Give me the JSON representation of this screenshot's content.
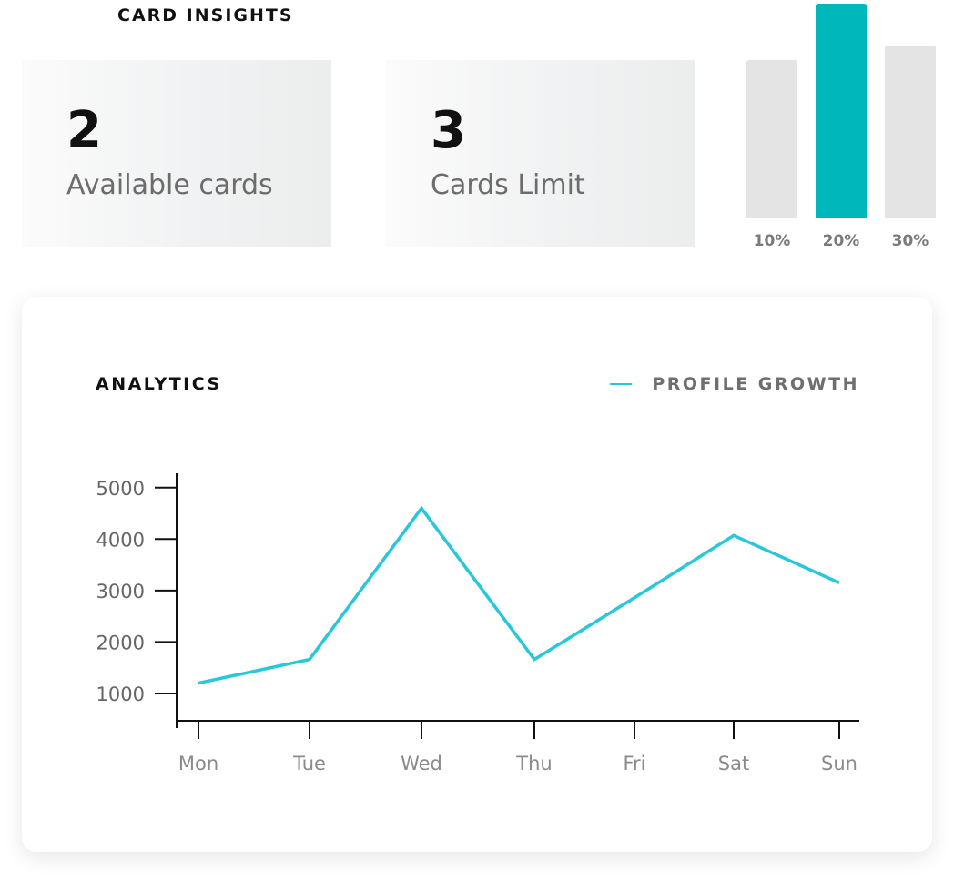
{
  "header": {
    "title": "CARD INSIGHTS"
  },
  "cards": [
    {
      "value": "2",
      "label": "Available cards"
    },
    {
      "value": "3",
      "label": "Cards Limit"
    }
  ],
  "colors": {
    "accent": "#00b8bc",
    "bar_muted": "#e4e4e4",
    "line": "#29c7da"
  },
  "chart_data": [
    {
      "type": "bar",
      "categories": [
        "10%",
        "20%",
        "30%"
      ],
      "values": [
        174,
        236,
        190
      ],
      "highlight_index": 1,
      "title": ""
    },
    {
      "type": "line",
      "title": "ANALYTICS",
      "categories": [
        "Mon",
        "Tue",
        "Wed",
        "Thu",
        "Fri",
        "Sat",
        "Sun"
      ],
      "series": [
        {
          "name": "PROFILE GROWTH",
          "values": [
            1200,
            1660,
            4600,
            1660,
            2860,
            4070,
            3150
          ]
        }
      ],
      "yticks": [
        1000,
        2000,
        3000,
        4000,
        5000
      ],
      "ylim": [
        0,
        5300
      ],
      "xlabel": "",
      "ylabel": "",
      "grid": false,
      "legend": "top-right"
    }
  ]
}
